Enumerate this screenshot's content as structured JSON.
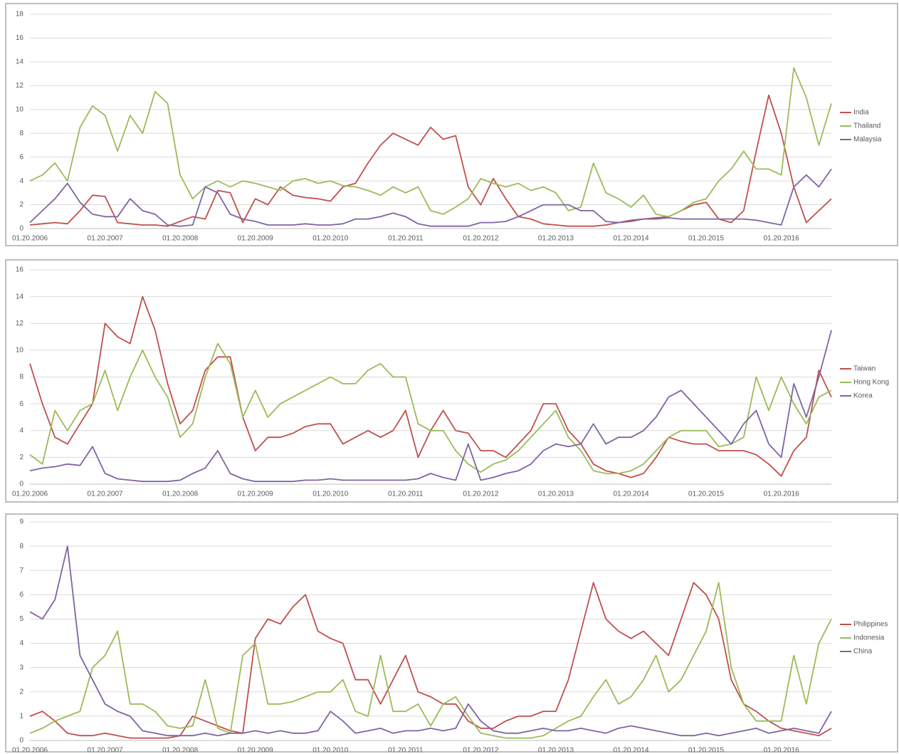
{
  "chart_data": [
    {
      "type": "line",
      "categories": [
        "01.20.2006",
        null,
        null,
        null,
        null,
        null,
        "01.20.2007",
        null,
        null,
        null,
        null,
        null,
        "01.20.2008",
        null,
        null,
        null,
        null,
        null,
        "01.20.2009",
        null,
        null,
        null,
        null,
        null,
        "01.20.2010",
        null,
        null,
        null,
        null,
        null,
        "01.20.2011",
        null,
        null,
        null,
        null,
        null,
        "01.20.2012",
        null,
        null,
        null,
        null,
        null,
        "01.20.2013",
        null,
        null,
        null,
        null,
        null,
        "01.20.2014",
        null,
        null,
        null,
        null,
        null,
        "01.20.2015",
        null,
        null,
        null,
        null,
        null,
        "01.20.2016",
        null,
        null,
        null,
        null
      ],
      "series": [
        {
          "name": "India",
          "color": "#c0504d",
          "values": [
            0.3,
            0.4,
            0.5,
            0.4,
            1.5,
            2.8,
            2.7,
            0.5,
            0.4,
            0.3,
            0.3,
            0.2,
            0.6,
            1.0,
            0.8,
            3.2,
            3.0,
            0.5,
            2.5,
            2.0,
            3.5,
            2.8,
            2.6,
            2.5,
            2.3,
            3.5,
            3.8,
            5.5,
            7.0,
            8.0,
            7.5,
            7.0,
            8.5,
            7.5,
            7.8,
            3.5,
            2.0,
            4.2,
            2.5,
            1.0,
            0.8,
            0.4,
            0.3,
            0.2,
            0.2,
            0.2,
            0.3,
            0.5,
            0.7,
            0.8,
            0.9,
            1.0,
            1.5,
            2.0,
            2.2,
            0.8,
            0.5,
            1.5,
            6.5,
            11.2,
            8.0,
            3.5,
            0.5,
            1.5,
            2.5
          ]
        },
        {
          "name": "Thailand",
          "color": "#9bbb59",
          "values": [
            4.0,
            4.5,
            5.5,
            4.0,
            8.5,
            10.3,
            9.5,
            6.5,
            9.5,
            8.0,
            11.5,
            10.5,
            4.5,
            2.5,
            3.5,
            4.0,
            3.5,
            4.0,
            3.8,
            3.5,
            3.2,
            4.0,
            4.2,
            3.8,
            4.0,
            3.6,
            3.5,
            3.2,
            2.8,
            3.5,
            3.0,
            3.5,
            1.5,
            1.2,
            1.8,
            2.5,
            4.2,
            3.8,
            3.5,
            3.8,
            3.2,
            3.5,
            3.0,
            1.5,
            1.8,
            5.5,
            3.0,
            2.5,
            1.8,
            2.8,
            1.2,
            1.0,
            1.5,
            2.2,
            2.5,
            4.0,
            5.0,
            6.5,
            5.0,
            5.0,
            4.5,
            13.5,
            11.0,
            7.0,
            10.5
          ]
        },
        {
          "name": "Malaysia",
          "color": "#8064a2",
          "values": [
            0.5,
            1.5,
            2.5,
            3.8,
            2.2,
            1.2,
            1.0,
            1.0,
            2.5,
            1.5,
            1.2,
            0.3,
            0.2,
            0.3,
            3.5,
            3.0,
            1.2,
            0.8,
            0.6,
            0.3,
            0.3,
            0.3,
            0.4,
            0.3,
            0.3,
            0.4,
            0.8,
            0.8,
            1.0,
            1.3,
            1.0,
            0.4,
            0.2,
            0.2,
            0.2,
            0.2,
            0.5,
            0.5,
            0.6,
            1.0,
            1.5,
            2.0,
            2.0,
            2.0,
            1.5,
            1.5,
            0.6,
            0.5,
            0.6,
            0.8,
            0.8,
            0.9,
            0.8,
            0.8,
            0.8,
            0.8,
            0.8,
            0.8,
            0.7,
            0.5,
            0.3,
            3.5,
            4.5,
            3.5,
            5.0
          ]
        }
      ],
      "ylim": [
        0,
        18
      ],
      "yticks": [
        0,
        2,
        4,
        6,
        8,
        10,
        12,
        14,
        16,
        18
      ],
      "grid": true,
      "legend": "right"
    },
    {
      "type": "line",
      "categories": [
        "01.20.2006",
        null,
        null,
        null,
        null,
        null,
        "01.20.2007",
        null,
        null,
        null,
        null,
        null,
        "01.20.2008",
        null,
        null,
        null,
        null,
        null,
        "01.20.2009",
        null,
        null,
        null,
        null,
        null,
        "01.20.2010",
        null,
        null,
        null,
        null,
        null,
        "01.20.2011",
        null,
        null,
        null,
        null,
        null,
        "01.20.2012",
        null,
        null,
        null,
        null,
        null,
        "01.20.2013",
        null,
        null,
        null,
        null,
        null,
        "01.20.2014",
        null,
        null,
        null,
        null,
        null,
        "01.20.2015",
        null,
        null,
        null,
        null,
        null,
        "01.20.2016",
        null,
        null,
        null,
        null
      ],
      "series": [
        {
          "name": "Taiwan",
          "color": "#c0504d",
          "values": [
            9.0,
            6.0,
            3.5,
            3.0,
            4.5,
            6.0,
            12.0,
            11.0,
            10.5,
            14.0,
            11.5,
            7.5,
            4.5,
            5.5,
            8.5,
            9.5,
            9.5,
            5.0,
            2.5,
            3.5,
            3.5,
            3.8,
            4.3,
            4.5,
            4.5,
            3.0,
            3.5,
            4.0,
            3.5,
            4.0,
            5.5,
            2.0,
            4.0,
            5.5,
            4.0,
            3.8,
            2.5,
            2.5,
            2.0,
            3.0,
            4.0,
            6.0,
            6.0,
            4.0,
            3.0,
            1.5,
            1.0,
            0.8,
            0.5,
            0.8,
            2.0,
            3.5,
            3.2,
            3.0,
            3.0,
            2.5,
            2.5,
            2.5,
            2.2,
            1.5,
            0.6,
            2.5,
            3.5,
            8.5,
            6.5
          ]
        },
        {
          "name": "Hong Kong",
          "color": "#9bbb59",
          "values": [
            2.2,
            1.5,
            5.5,
            4.0,
            5.5,
            6.0,
            8.5,
            5.5,
            8.0,
            10.0,
            8.0,
            6.5,
            3.5,
            4.5,
            8.0,
            10.5,
            9.0,
            5.0,
            7.0,
            5.0,
            6.0,
            6.5,
            7.0,
            7.5,
            8.0,
            7.5,
            7.5,
            8.5,
            9.0,
            8.0,
            8.0,
            4.5,
            4.0,
            4.0,
            2.5,
            1.5,
            0.9,
            1.5,
            1.8,
            2.5,
            3.5,
            4.5,
            5.5,
            3.5,
            2.5,
            1.0,
            0.8,
            0.8,
            1.0,
            1.5,
            2.5,
            3.5,
            4.0,
            4.0,
            4.0,
            2.8,
            3.0,
            3.5,
            8.0,
            5.5,
            8.0,
            6.0,
            4.5,
            6.5,
            7.0
          ]
        },
        {
          "name": "Korea",
          "color": "#8064a2",
          "values": [
            1.0,
            1.2,
            1.3,
            1.5,
            1.4,
            2.8,
            0.8,
            0.4,
            0.3,
            0.2,
            0.2,
            0.2,
            0.3,
            0.8,
            1.2,
            2.5,
            0.8,
            0.4,
            0.2,
            0.2,
            0.2,
            0.2,
            0.3,
            0.3,
            0.4,
            0.3,
            0.3,
            0.3,
            0.3,
            0.3,
            0.3,
            0.4,
            0.8,
            0.5,
            0.3,
            3.0,
            0.3,
            0.5,
            0.8,
            1.0,
            1.5,
            2.5,
            3.0,
            2.8,
            3.0,
            4.5,
            3.0,
            3.5,
            3.5,
            4.0,
            5.0,
            6.5,
            7.0,
            6.0,
            5.0,
            4.0,
            3.0,
            4.5,
            5.5,
            3.0,
            2.0,
            7.5,
            5.0,
            8.0,
            11.5
          ]
        }
      ],
      "ylim": [
        0,
        16
      ],
      "yticks": [
        0,
        2,
        4,
        6,
        8,
        10,
        12,
        14,
        16
      ],
      "grid": true,
      "legend": "right"
    },
    {
      "type": "line",
      "categories": [
        "01.20.2006",
        null,
        null,
        null,
        null,
        null,
        "01.20.2007",
        null,
        null,
        null,
        null,
        null,
        "01.20.2008",
        null,
        null,
        null,
        null,
        null,
        "01.20.2009",
        null,
        null,
        null,
        null,
        null,
        "01.20.2010",
        null,
        null,
        null,
        null,
        null,
        "01.20.2011",
        null,
        null,
        null,
        null,
        null,
        "01.20.2012",
        null,
        null,
        null,
        null,
        null,
        "01.20.2013",
        null,
        null,
        null,
        null,
        null,
        "01.20.2014",
        null,
        null,
        null,
        null,
        null,
        "01.20.2015",
        null,
        null,
        null,
        null,
        null,
        "01.20.2016",
        null,
        null,
        null,
        null
      ],
      "series": [
        {
          "name": "Philippines",
          "color": "#c0504d",
          "values": [
            1.0,
            1.2,
            0.8,
            0.3,
            0.2,
            0.2,
            0.3,
            0.2,
            0.1,
            0.1,
            0.1,
            0.1,
            0.2,
            1.0,
            0.8,
            0.6,
            0.4,
            0.3,
            4.2,
            5.0,
            4.8,
            5.5,
            6.0,
            4.5,
            4.2,
            4.0,
            2.5,
            2.5,
            1.5,
            2.5,
            3.5,
            2.0,
            1.8,
            1.5,
            1.5,
            0.8,
            0.5,
            0.5,
            0.8,
            1.0,
            1.0,
            1.2,
            1.2,
            2.5,
            4.5,
            6.5,
            5.0,
            4.5,
            4.2,
            4.5,
            4.0,
            3.5,
            5.0,
            6.5,
            6.0,
            5.0,
            2.5,
            1.5,
            1.2,
            0.8,
            0.5,
            0.4,
            0.3,
            0.2,
            0.5
          ]
        },
        {
          "name": "Indonesia",
          "color": "#9bbb59",
          "values": [
            0.3,
            0.5,
            0.8,
            1.0,
            1.2,
            3.0,
            3.5,
            4.5,
            1.5,
            1.5,
            1.2,
            0.6,
            0.5,
            0.6,
            2.5,
            0.5,
            0.3,
            3.5,
            4.0,
            1.5,
            1.5,
            1.6,
            1.8,
            2.0,
            2.0,
            2.5,
            1.2,
            1.0,
            3.5,
            1.2,
            1.2,
            1.5,
            0.6,
            1.5,
            1.8,
            1.0,
            0.3,
            0.2,
            0.1,
            0.1,
            0.1,
            0.2,
            0.5,
            0.8,
            1.0,
            1.8,
            2.5,
            1.5,
            1.8,
            2.5,
            3.5,
            2.0,
            2.5,
            3.5,
            4.5,
            6.5,
            3.0,
            1.5,
            0.8,
            0.8,
            0.8,
            3.5,
            1.5,
            4.0,
            5.0
          ]
        },
        {
          "name": "China",
          "color": "#8064a2",
          "values": [
            5.3,
            5.0,
            5.8,
            8.0,
            3.5,
            2.5,
            1.5,
            1.2,
            1.0,
            0.4,
            0.3,
            0.2,
            0.2,
            0.2,
            0.3,
            0.2,
            0.3,
            0.3,
            0.4,
            0.3,
            0.4,
            0.3,
            0.3,
            0.4,
            1.2,
            0.8,
            0.3,
            0.4,
            0.5,
            0.3,
            0.4,
            0.4,
            0.5,
            0.4,
            0.5,
            1.5,
            0.8,
            0.4,
            0.3,
            0.3,
            0.4,
            0.5,
            0.4,
            0.4,
            0.5,
            0.4,
            0.3,
            0.5,
            0.6,
            0.5,
            0.4,
            0.3,
            0.2,
            0.2,
            0.3,
            0.2,
            0.3,
            0.4,
            0.5,
            0.3,
            0.4,
            0.5,
            0.4,
            0.3,
            1.2
          ]
        }
      ],
      "ylim": [
        0,
        9
      ],
      "yticks": [
        0,
        1,
        2,
        3,
        4,
        5,
        6,
        7,
        8,
        9
      ],
      "grid": true,
      "legend": "right"
    }
  ]
}
